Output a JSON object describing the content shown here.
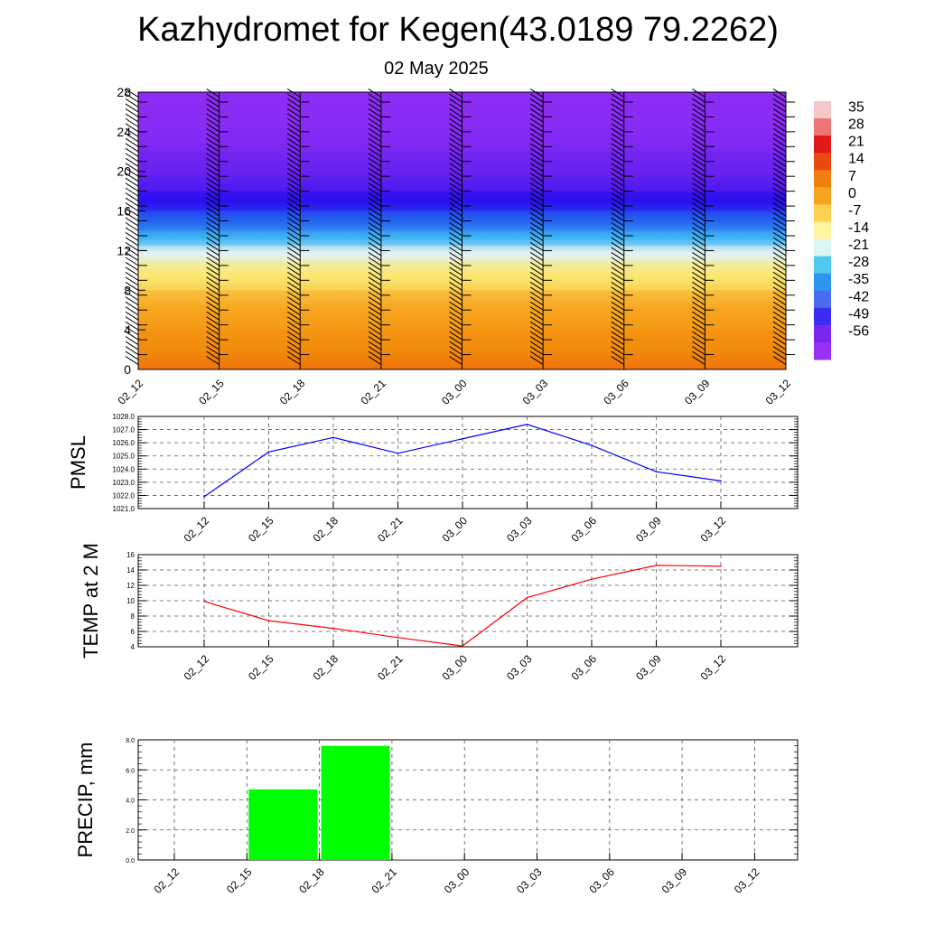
{
  "title": "Kazhydromet for Kegen(43.0189 79.2262)",
  "subtitle": "02 May 2025",
  "chart_data": [
    {
      "type": "heatmap",
      "description_of_fill": "temperature cross-section (vertical levels 0-28 vs forecast time) with wind barbs",
      "x_ticks": [
        "02_12",
        "02_15",
        "02_18",
        "02_21",
        "03_00",
        "03_03",
        "03_06",
        "03_09",
        "03_12"
      ],
      "y_ticks": [
        "0",
        "4",
        "8",
        "12",
        "16",
        "20",
        "24",
        "28"
      ],
      "ylim": [
        0,
        28
      ],
      "levels": [
        {
          "min": 0,
          "max": 4,
          "value": 12
        },
        {
          "min": 4,
          "max": 8,
          "value": 9
        },
        {
          "min": 8,
          "max": 11,
          "value": 0
        },
        {
          "min": 11,
          "max": 12.5,
          "value": -14
        },
        {
          "min": 12.5,
          "max": 14,
          "value": -28
        },
        {
          "min": 14,
          "max": 16,
          "value": -42
        },
        {
          "min": 16,
          "max": 18,
          "value": -56
        },
        {
          "min": 18,
          "max": 22,
          "value": -60
        },
        {
          "min": 22,
          "max": 28,
          "value": -62
        }
      ],
      "colorbar": {
        "labels": [
          "35",
          "28",
          "21",
          "14",
          "7",
          "0",
          "-7",
          "-14",
          "-21",
          "-28",
          "-35",
          "-42",
          "-49",
          "-56"
        ],
        "colors": [
          "#f7c6c6",
          "#ef7575",
          "#e01818",
          "#e84a10",
          "#f07f10",
          "#f7a520",
          "#fad250",
          "#fdf3a0",
          "#ddf4f7",
          "#50c8f0",
          "#2d95f0",
          "#4c6cf0",
          "#3a2cf0",
          "#7a28f0",
          "#9b30f5"
        ]
      }
    },
    {
      "type": "line",
      "ylabel": "PMSL",
      "x": [
        "02_12",
        "02_15",
        "02_18",
        "02_21",
        "03_00",
        "03_03",
        "03_06",
        "03_09",
        "03_12"
      ],
      "series": [
        {
          "values": [
            1021.9,
            1025.3,
            1026.4,
            1025.2,
            1026.3,
            1027.4,
            1025.8,
            1023.8,
            1023.1
          ],
          "color": "#0000ff"
        }
      ],
      "ylim": [
        1021.0,
        1028.0
      ],
      "y_ticks": [
        "1021.0",
        "1022.0",
        "1023.0",
        "1024.0",
        "1025.0",
        "1026.0",
        "1027.0",
        "1028.0"
      ],
      "grid": true
    },
    {
      "type": "line",
      "ylabel": "TEMP at 2 M",
      "x": [
        "02_12",
        "02_15",
        "02_18",
        "02_21",
        "03_00",
        "03_03",
        "03_06",
        "03_09",
        "03_12"
      ],
      "series": [
        {
          "values": [
            9.9,
            7.4,
            6.4,
            5.2,
            4.1,
            10.4,
            12.8,
            14.6,
            14.5
          ],
          "color": "#ff0000"
        }
      ],
      "ylim": [
        4,
        16
      ],
      "y_ticks": [
        "4",
        "6",
        "8",
        "10",
        "12",
        "14",
        "16"
      ],
      "grid": true
    },
    {
      "type": "bar",
      "ylabel": "PRECIP, mm",
      "categories": [
        "02_12",
        "02_15",
        "02_18",
        "02_21",
        "03_00",
        "03_03",
        "03_06",
        "03_09",
        "03_12"
      ],
      "values": [
        0.0,
        4.7,
        7.6,
        0.05,
        0.0,
        0.0,
        0.0,
        0.0,
        0.0
      ],
      "color": "#00ff00",
      "ylim": [
        0,
        8
      ],
      "y_ticks": [
        "0.0",
        "2.0",
        "4.0",
        "6.0",
        "8.0"
      ],
      "grid": true
    }
  ]
}
